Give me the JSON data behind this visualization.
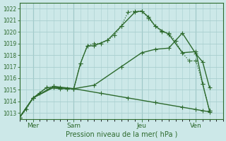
{
  "bg_color": "#cce8e8",
  "grid_color": "#a8cece",
  "line_color": "#2d6a2d",
  "xlabel": "Pression niveau de la mer( hPa )",
  "ylim": [
    1012.5,
    1022.5
  ],
  "yticks": [
    1013,
    1014,
    1015,
    1016,
    1017,
    1018,
    1019,
    1020,
    1021,
    1022
  ],
  "xtick_labels": [
    "Mer",
    "Sam",
    "Jeu",
    "Ven"
  ],
  "xtick_positions": [
    2,
    8,
    18,
    26
  ],
  "xlim": [
    0,
    30
  ],
  "vlines": [
    2,
    8,
    18,
    26
  ],
  "series": [
    {
      "x": [
        0,
        1,
        2,
        3,
        4,
        5,
        6,
        7,
        8,
        9,
        10,
        11,
        12,
        13,
        14,
        15,
        16,
        17,
        18,
        19,
        20,
        21,
        22,
        23,
        24,
        25,
        26,
        27,
        28
      ],
      "y": [
        1012.6,
        1013.3,
        1014.3,
        1014.7,
        1015.2,
        1015.3,
        1015.2,
        1015.1,
        1015.1,
        1017.3,
        1018.8,
        1019.0,
        1019.0,
        1019.3,
        1019.7,
        1020.5,
        1021.7,
        1021.8,
        1021.8,
        1021.2,
        1020.5,
        1020.0,
        1019.9,
        1019.2,
        1018.2,
        1017.5,
        1017.5,
        1015.5,
        1013.2
      ],
      "marker": "+",
      "markersize": 4,
      "lw": 0.9,
      "ls": ":"
    },
    {
      "x": [
        0,
        2,
        4,
        6,
        7,
        8,
        9,
        10,
        11,
        13,
        15,
        17,
        18,
        19,
        20,
        21,
        22,
        24,
        26,
        27,
        28
      ],
      "y": [
        1012.6,
        1014.3,
        1015.2,
        1015.1,
        1015.1,
        1015.1,
        1017.3,
        1018.8,
        1018.8,
        1019.3,
        1020.5,
        1021.7,
        1021.8,
        1021.3,
        1020.5,
        1020.1,
        1019.8,
        1018.2,
        1018.3,
        1015.5,
        1013.2
      ],
      "marker": "+",
      "markersize": 4,
      "lw": 1.0,
      "ls": "-"
    },
    {
      "x": [
        0,
        2,
        5,
        8,
        11,
        15,
        18,
        20,
        22,
        24,
        26,
        27,
        28
      ],
      "y": [
        1012.6,
        1014.3,
        1015.3,
        1015.1,
        1015.4,
        1017.0,
        1018.2,
        1018.5,
        1018.6,
        1019.9,
        1018.1,
        1017.4,
        1015.2
      ],
      "marker": "+",
      "markersize": 4,
      "lw": 1.0,
      "ls": "-"
    },
    {
      "x": [
        0,
        2,
        5,
        8,
        12,
        16,
        20,
        24,
        26,
        27,
        28
      ],
      "y": [
        1012.6,
        1014.3,
        1015.2,
        1015.1,
        1014.7,
        1014.3,
        1013.9,
        1013.5,
        1013.3,
        1013.2,
        1013.1
      ],
      "marker": "+",
      "markersize": 4,
      "lw": 1.0,
      "ls": "-"
    }
  ]
}
